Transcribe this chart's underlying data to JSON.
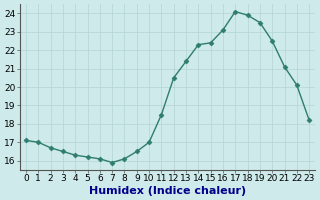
{
  "x": [
    0,
    1,
    2,
    3,
    4,
    5,
    6,
    7,
    8,
    9,
    10,
    11,
    12,
    13,
    14,
    15,
    16,
    17,
    18,
    19,
    20,
    21,
    22,
    23
  ],
  "y": [
    17.1,
    17.0,
    16.7,
    16.5,
    16.3,
    16.2,
    16.1,
    15.9,
    16.1,
    16.5,
    17.0,
    18.5,
    20.5,
    21.4,
    22.3,
    22.4,
    23.1,
    24.1,
    23.9,
    23.5,
    22.5,
    21.1,
    20.1,
    18.2
  ],
  "xlabel": "Humidex (Indice chaleur)",
  "xlim": [
    -0.5,
    23.5
  ],
  "ylim": [
    15.5,
    24.5
  ],
  "yticks": [
    16,
    17,
    18,
    19,
    20,
    21,
    22,
    23,
    24
  ],
  "xticks": [
    0,
    1,
    2,
    3,
    4,
    5,
    6,
    7,
    8,
    9,
    10,
    11,
    12,
    13,
    14,
    15,
    16,
    17,
    18,
    19,
    20,
    21,
    22,
    23
  ],
  "line_color": "#2e7d6e",
  "marker": "D",
  "marker_size": 2.5,
  "linewidth": 1.0,
  "bg_color": "#ceeaea",
  "grid_color": "#b8d8d8",
  "tick_label_fontsize": 6.5,
  "xlabel_fontsize": 8,
  "xlabel_color": "#00008b",
  "fig_width": 3.2,
  "fig_height": 2.0
}
